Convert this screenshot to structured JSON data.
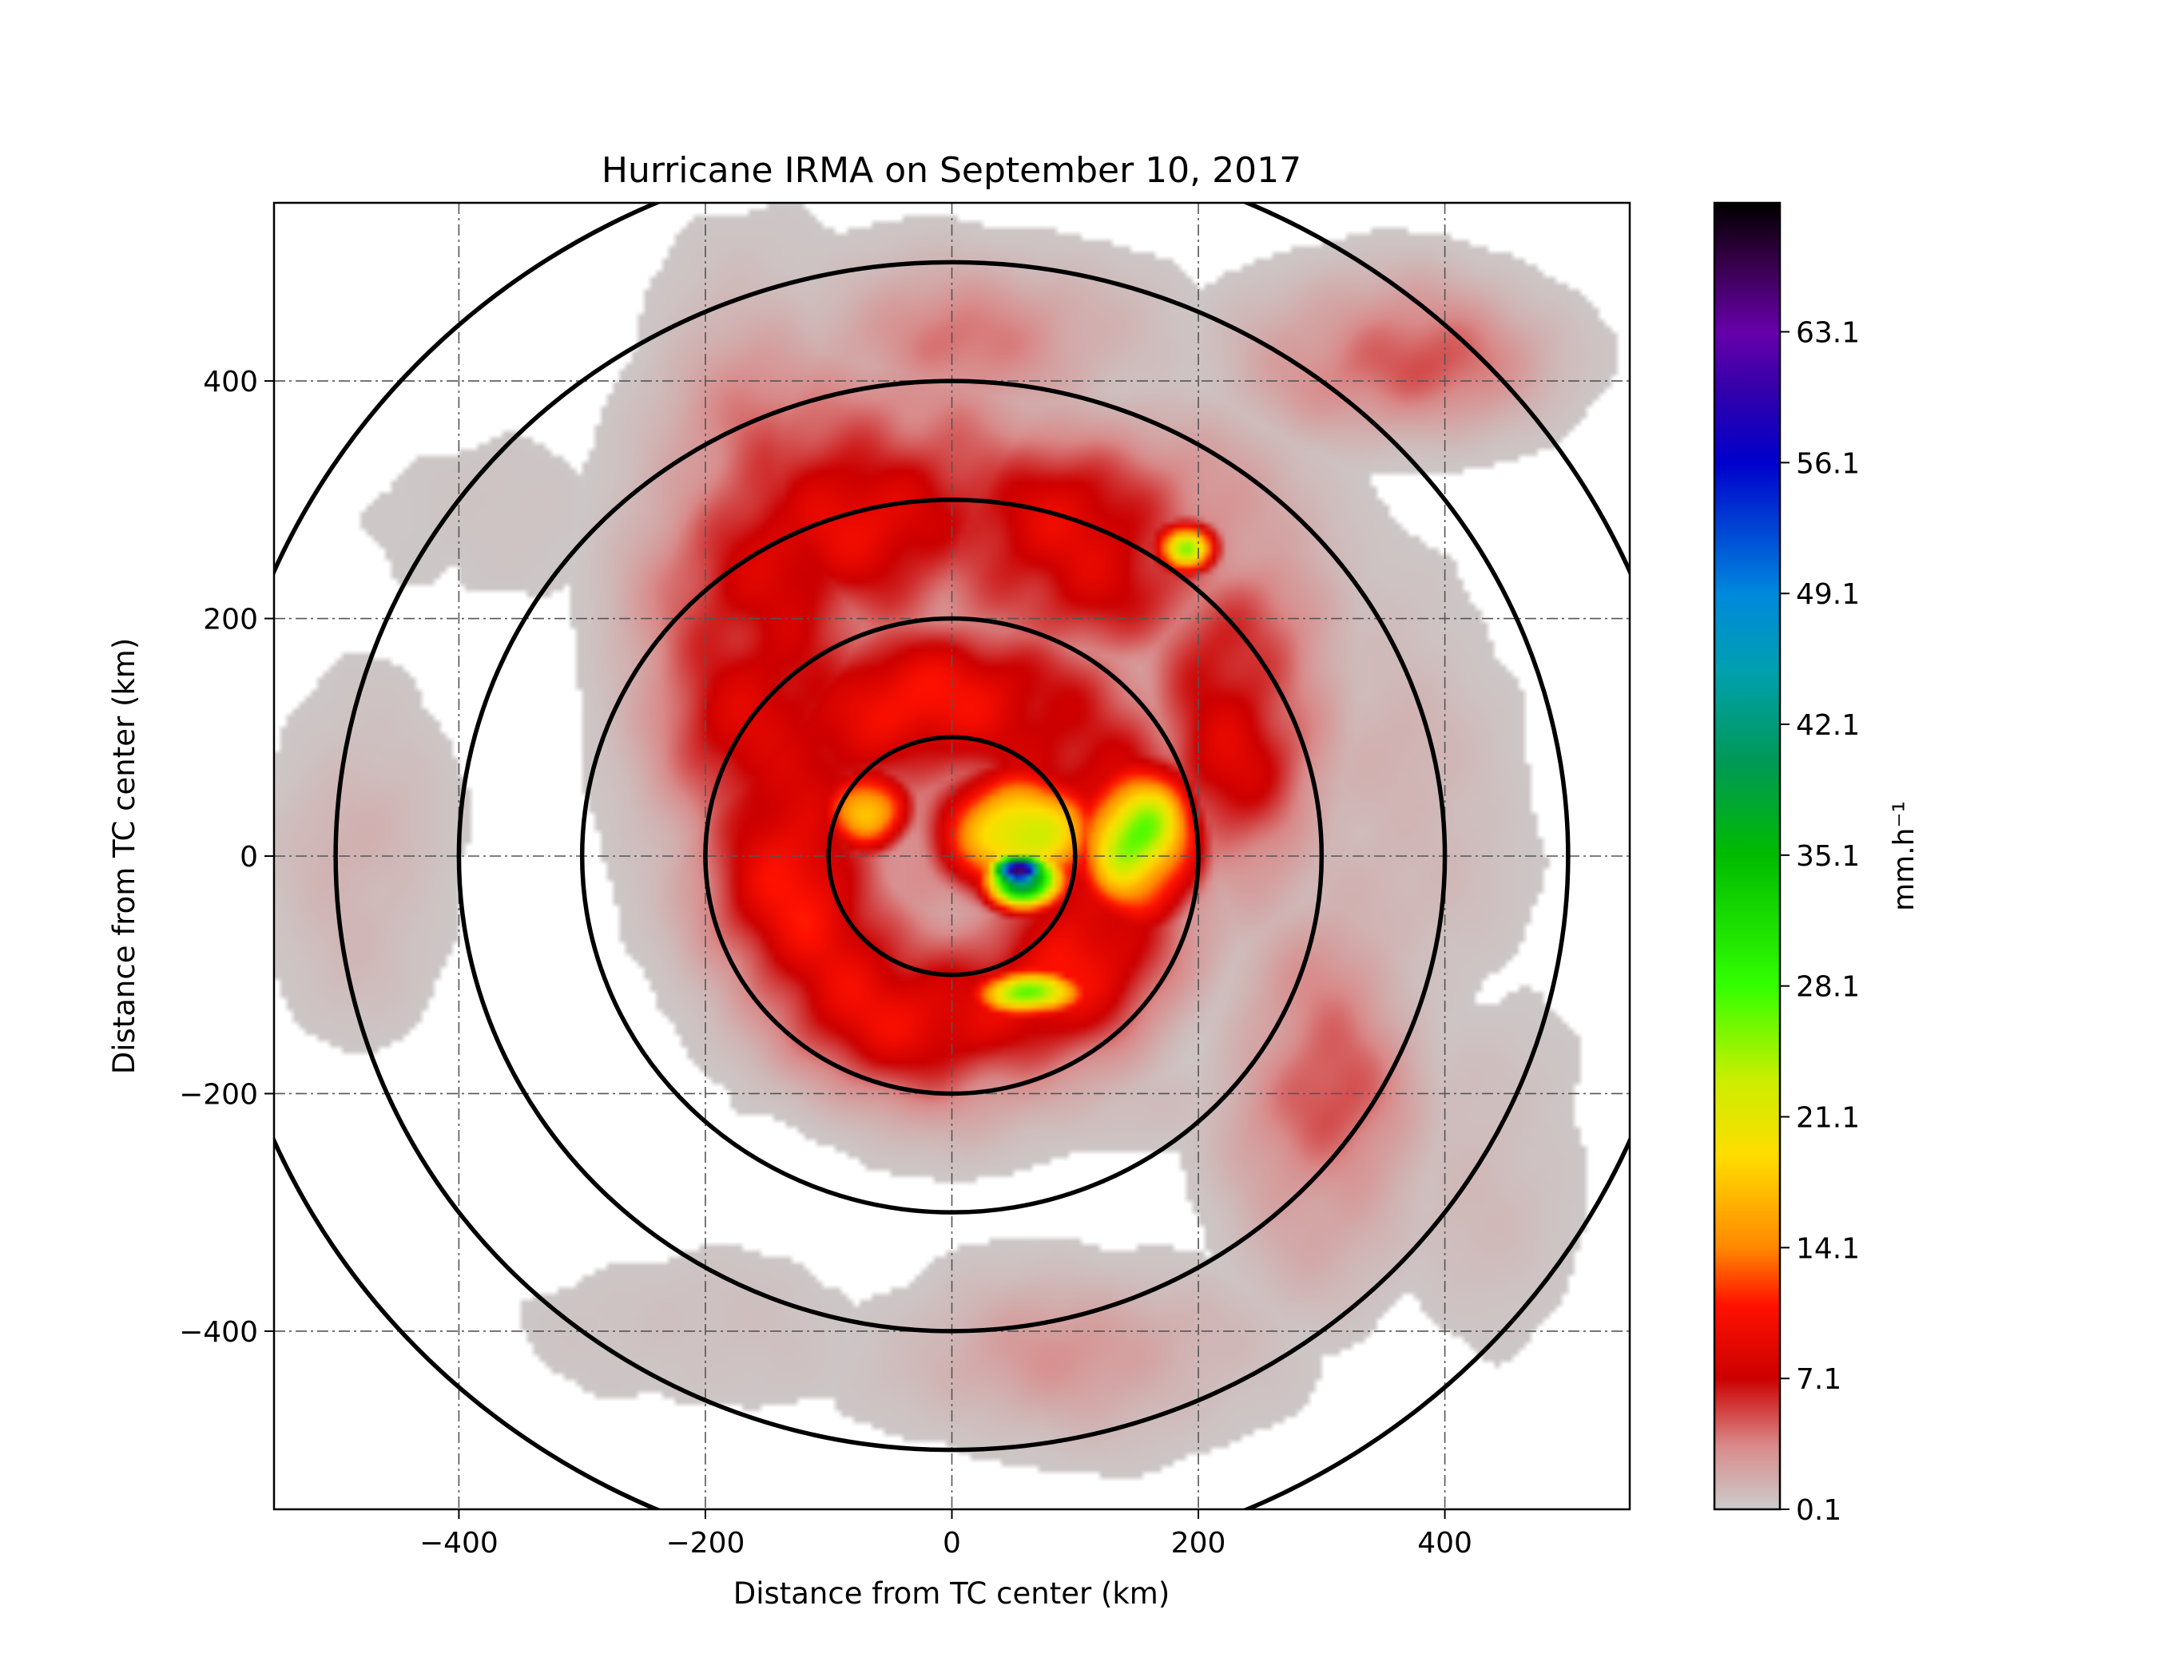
{
  "chart_data": {
    "type": "heatmap",
    "title": "Hurricane IRMA on September 10, 2017",
    "xlabel": "Distance from TC center (km)",
    "ylabel": "Distance from TC center (km)",
    "xlim": [
      -550,
      550
    ],
    "ylim": [
      -550,
      550
    ],
    "xticks": [
      -400,
      -200,
      0,
      200,
      400
    ],
    "yticks": [
      -400,
      -200,
      0,
      200,
      400
    ],
    "xtick_labels": [
      "−400",
      "−200",
      "0",
      "200",
      "400"
    ],
    "ytick_labels": [
      "−400",
      "−200",
      "0",
      "200",
      "400"
    ],
    "grid": true,
    "range_rings_km": [
      100,
      200,
      300,
      400,
      500,
      600
    ],
    "colorbar": {
      "label": "mm.h⁻¹",
      "min": 0.1,
      "max": 70,
      "tick_values": [
        0.1,
        7.1,
        14.1,
        21.1,
        28.1,
        35.1,
        42.1,
        49.1,
        56.1,
        63.1
      ],
      "tick_labels": [
        "0.1",
        "7.1",
        "14.1",
        "21.1",
        "28.1",
        "35.1",
        "42.1",
        "49.1",
        "56.1",
        "63.1"
      ],
      "colors": [
        {
          "v": 0.1,
          "c": "#cccccc"
        },
        {
          "v": 3.5,
          "c": "#d98a8a"
        },
        {
          "v": 7.1,
          "c": "#cc0000"
        },
        {
          "v": 11,
          "c": "#ff1100"
        },
        {
          "v": 14.1,
          "c": "#ff8800"
        },
        {
          "v": 19,
          "c": "#ffdd00"
        },
        {
          "v": 23,
          "c": "#ccee00"
        },
        {
          "v": 28.1,
          "c": "#33ff00"
        },
        {
          "v": 35.1,
          "c": "#00bb00"
        },
        {
          "v": 40,
          "c": "#009955"
        },
        {
          "v": 45,
          "c": "#00a0b0"
        },
        {
          "v": 49.1,
          "c": "#0088dd"
        },
        {
          "v": 56.1,
          "c": "#0000cc"
        },
        {
          "v": 60,
          "c": "#3300aa"
        },
        {
          "v": 63.1,
          "c": "#6600aa"
        },
        {
          "v": 67,
          "c": "#330044"
        },
        {
          "v": 70,
          "c": "#000000"
        }
      ]
    },
    "rain_features": [
      {
        "kind": "ring",
        "r": 130,
        "width": 170,
        "value": 9
      },
      {
        "kind": "blob",
        "x": -150,
        "y": 180,
        "rx": 110,
        "ry": 260,
        "value": 9
      },
      {
        "kind": "blob",
        "x": -60,
        "y": 290,
        "rx": 170,
        "ry": 140,
        "value": 8.5
      },
      {
        "kind": "blob",
        "x": 90,
        "y": 260,
        "rx": 190,
        "ry": 120,
        "value": 8.5
      },
      {
        "kind": "blob",
        "x": 230,
        "y": 120,
        "rx": 90,
        "ry": 170,
        "value": 8
      },
      {
        "kind": "blob",
        "x": 0,
        "y": 30,
        "rx": 230,
        "ry": 190,
        "value": 4
      },
      {
        "kind": "blob",
        "x": 10,
        "y": 430,
        "rx": 170,
        "ry": 90,
        "value": 3.5
      },
      {
        "kind": "blob",
        "x": 360,
        "y": 420,
        "rx": 140,
        "ry": 80,
        "value": 5
      },
      {
        "kind": "blob",
        "x": 300,
        "y": -200,
        "rx": 90,
        "ry": 170,
        "value": 5
      },
      {
        "kind": "blob",
        "x": 340,
        "y": 30,
        "rx": 140,
        "ry": 260,
        "value": 1.5
      },
      {
        "kind": "blob",
        "x": -380,
        "y": 280,
        "rx": 150,
        "ry": 110,
        "value": 0.6
      },
      {
        "kind": "blob",
        "x": -480,
        "y": 0,
        "rx": 90,
        "ry": 170,
        "value": 1.5
      },
      {
        "kind": "blob",
        "x": -200,
        "y": -400,
        "rx": 190,
        "ry": 90,
        "value": 0.8
      },
      {
        "kind": "blob",
        "x": 100,
        "y": -420,
        "rx": 180,
        "ry": 90,
        "value": 2.5
      },
      {
        "kind": "blob",
        "x": 50,
        "y": -200,
        "rx": 260,
        "ry": 60,
        "value": 1.2
      },
      {
        "kind": "blob",
        "x": 430,
        "y": -260,
        "rx": 110,
        "ry": 200,
        "value": 1
      },
      {
        "kind": "blob",
        "x": 60,
        "y": 20,
        "rx": 85,
        "ry": 70,
        "value": 20
      },
      {
        "kind": "blob",
        "x": 150,
        "y": 10,
        "rx": 55,
        "ry": 75,
        "value": 30
      },
      {
        "kind": "blob",
        "x": -70,
        "y": 40,
        "rx": 40,
        "ry": 40,
        "value": 24
      },
      {
        "kind": "blob",
        "x": 60,
        "y": -115,
        "rx": 55,
        "ry": 25,
        "value": 26
      },
      {
        "kind": "blob",
        "x": 60,
        "y": -20,
        "rx": 40,
        "ry": 30,
        "value": 38
      },
      {
        "kind": "blob",
        "x": 55,
        "y": -12,
        "rx": 28,
        "ry": 16,
        "value": 57
      },
      {
        "kind": "blob",
        "x": 190,
        "y": 260,
        "rx": 30,
        "ry": 25,
        "value": 28
      }
    ]
  }
}
